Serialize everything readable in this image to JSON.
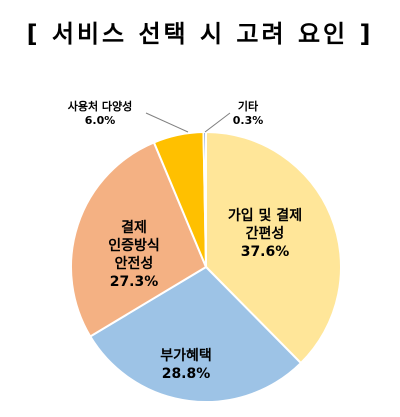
{
  "title": "[ 서비스 선택 시 고려 요인 ]",
  "chart_data": {
    "type": "pie",
    "title": "[ 서비스 선택 시 고려 요인 ]",
    "unit": "%",
    "slices": [
      {
        "label": "가입 및 결제 간편성",
        "lines": [
          "가입 및 결제",
          "간편성"
        ],
        "value": 37.6,
        "value_text": "37.6%",
        "color": "#FFE699"
      },
      {
        "label": "부가혜택",
        "lines": [
          "부가혜택"
        ],
        "value": 28.8,
        "value_text": "28.8%",
        "color": "#9DC3E6"
      },
      {
        "label": "결제 인증방식 안전성",
        "lines": [
          "결제",
          "인증방식",
          "안전성"
        ],
        "value": 27.3,
        "value_text": "27.3%",
        "color": "#F4B183"
      },
      {
        "label": "사용처 다양성",
        "lines": [
          "사용처 다양성"
        ],
        "value": 6.0,
        "value_text": "6.0%",
        "color": "#FFC000"
      },
      {
        "label": "기타",
        "lines": [
          "기타"
        ],
        "value": 0.3,
        "value_text": "0.3%",
        "color": "#4472C4"
      }
    ]
  }
}
